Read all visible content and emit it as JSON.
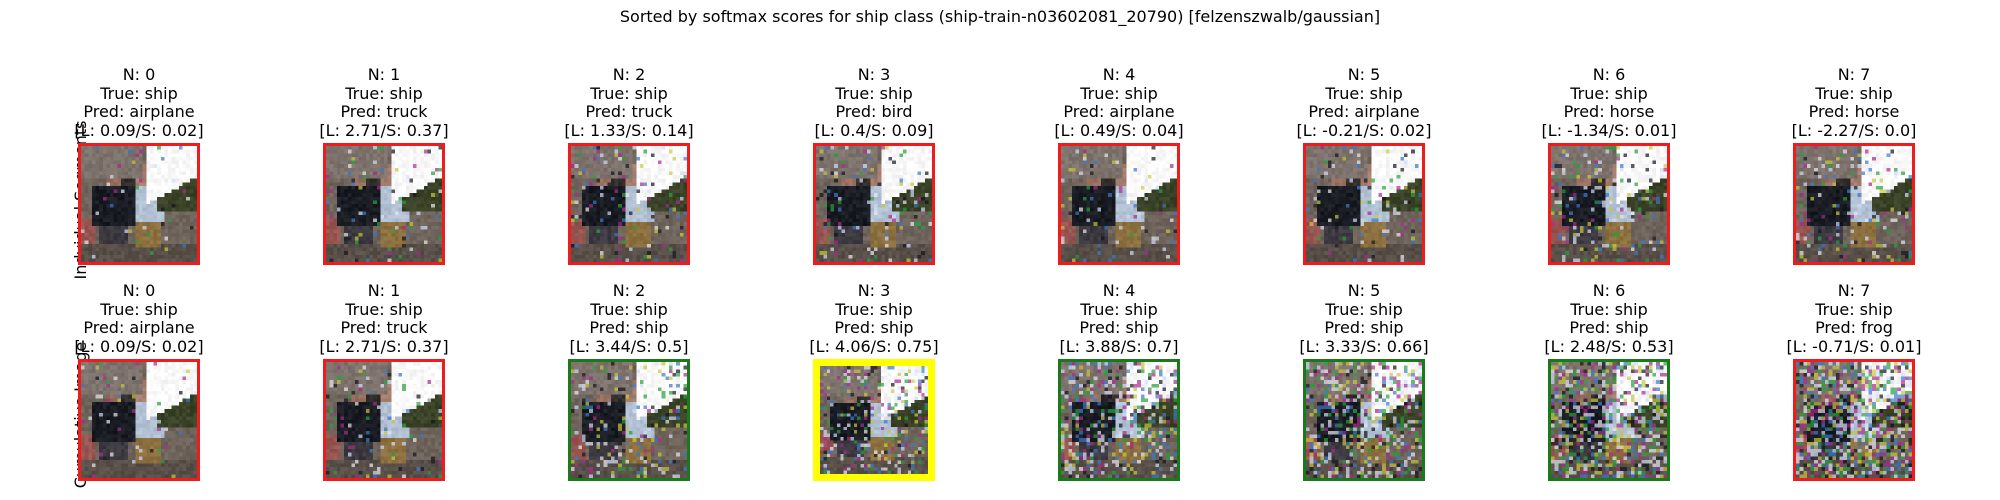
{
  "figure": {
    "title": "Sorted by softmax scores for ship class (ship-train-n03602081_20790) [felzenszwalb/gaussian]"
  },
  "colors": {
    "red": "#ee1c1c",
    "green": "#1a7a1a",
    "yellow": "#ffff00",
    "background": "#ffffff"
  },
  "rows": [
    {
      "label": "Indvidual Segments",
      "panels": [
        {
          "n": "N: 0",
          "true": "True: ship",
          "pred": "Pred: airplane",
          "scores": "[L: 0.09/S: 0.02]",
          "border": "red",
          "noise": 0.05
        },
        {
          "n": "N: 1",
          "true": "True: ship",
          "pred": "Pred: truck",
          "scores": "[L: 2.71/S: 0.37]",
          "border": "red",
          "noise": 0.08
        },
        {
          "n": "N: 2",
          "true": "True: ship",
          "pred": "Pred: truck",
          "scores": "[L: 1.33/S: 0.14]",
          "border": "red",
          "noise": 0.12
        },
        {
          "n": "N: 3",
          "true": "True: ship",
          "pred": "Pred: bird",
          "scores": "[L: 0.4/S: 0.09]",
          "border": "red",
          "noise": 0.12
        },
        {
          "n": "N: 4",
          "true": "True: ship",
          "pred": "Pred: airplane",
          "scores": "[L: 0.49/S: 0.04]",
          "border": "red",
          "noise": 0.1
        },
        {
          "n": "N: 5",
          "true": "True: ship",
          "pred": "Pred: airplane",
          "scores": "[L: -0.21/S: 0.02]",
          "border": "red",
          "noise": 0.1
        },
        {
          "n": "N: 6",
          "true": "True: ship",
          "pred": "Pred: horse",
          "scores": "[L: -1.34/S: 0.01]",
          "border": "red",
          "noise": 0.18
        },
        {
          "n": "N: 7",
          "true": "True: ship",
          "pred": "Pred: horse",
          "scores": "[L: -2.27/S: 0.0]",
          "border": "red",
          "noise": 0.15
        }
      ]
    },
    {
      "label": "Cumulative Image",
      "panels": [
        {
          "n": "N: 0",
          "true": "True: ship",
          "pred": "Pred: airplane",
          "scores": "[L: 0.09/S: 0.02]",
          "border": "red",
          "noise": 0.05
        },
        {
          "n": "N: 1",
          "true": "True: ship",
          "pred": "Pred: truck",
          "scores": "[L: 2.71/S: 0.37]",
          "border": "red",
          "noise": 0.1
        },
        {
          "n": "N: 2",
          "true": "True: ship",
          "pred": "Pred: ship",
          "scores": "[L: 3.44/S: 0.5]",
          "border": "green",
          "noise": 0.2
        },
        {
          "n": "N: 3",
          "true": "True: ship",
          "pred": "Pred: ship",
          "scores": "[L: 4.06/S: 0.75]",
          "border": "yellow",
          "noise": 0.3
        },
        {
          "n": "N: 4",
          "true": "True: ship",
          "pred": "Pred: ship",
          "scores": "[L: 3.88/S: 0.7]",
          "border": "green",
          "noise": 0.38
        },
        {
          "n": "N: 5",
          "true": "True: ship",
          "pred": "Pred: ship",
          "scores": "[L: 3.33/S: 0.66]",
          "border": "green",
          "noise": 0.45
        },
        {
          "n": "N: 6",
          "true": "True: ship",
          "pred": "Pred: ship",
          "scores": "[L: 2.48/S: 0.53]",
          "border": "green",
          "noise": 0.55
        },
        {
          "n": "N: 7",
          "true": "True: ship",
          "pred": "Pred: frog",
          "scores": "[L: -0.71/S: 0.01]",
          "border": "red",
          "noise": 0.65
        }
      ]
    }
  ]
}
